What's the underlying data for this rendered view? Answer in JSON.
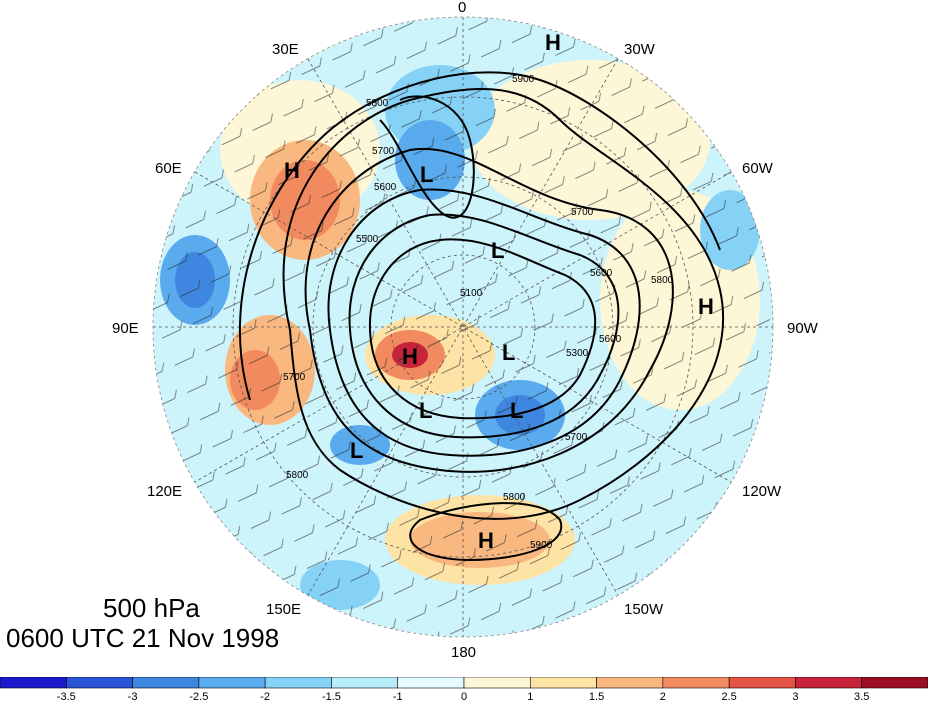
{
  "title": {
    "level": "500 hPa",
    "time": "0600 UTC 21 Nov 1998"
  },
  "longitude_labels": [
    "0",
    "30W",
    "60W",
    "90W",
    "120W",
    "150W",
    "180",
    "150E",
    "120E",
    "90E",
    "60E",
    "30E"
  ],
  "contour_labels": [
    "5500",
    "5600",
    "5700",
    "5800",
    "5900",
    "5600",
    "5700",
    "5800",
    "5100",
    "5300",
    "5800",
    "5900",
    "5700",
    "5800",
    "5600",
    "5700"
  ],
  "centers": [
    {
      "type": "H",
      "label": "H"
    },
    {
      "type": "H",
      "label": "H"
    },
    {
      "type": "H",
      "label": "H"
    },
    {
      "type": "H",
      "label": "H"
    },
    {
      "type": "H",
      "label": "H"
    },
    {
      "type": "L",
      "label": "L"
    },
    {
      "type": "L",
      "label": "L"
    },
    {
      "type": "L",
      "label": "L"
    },
    {
      "type": "L",
      "label": "L"
    },
    {
      "type": "L",
      "label": "L"
    },
    {
      "type": "L",
      "label": "L"
    }
  ],
  "colorbar": {
    "ticks": [
      "-3.5",
      "-3",
      "-2.5",
      "-2",
      "-1.5",
      "-1",
      "0",
      "1",
      "1.5",
      "2",
      "2.5",
      "3",
      "3.5"
    ],
    "colors": [
      "#1a1acc",
      "#2a55d6",
      "#3f86e0",
      "#5aaaee",
      "#86d2f7",
      "#b7ecfa",
      "#e6fbff",
      "#fdf6d7",
      "#fde3a6",
      "#f9b880",
      "#f18a5e",
      "#e35446",
      "#c8233a",
      "#9c0c24"
    ]
  }
}
